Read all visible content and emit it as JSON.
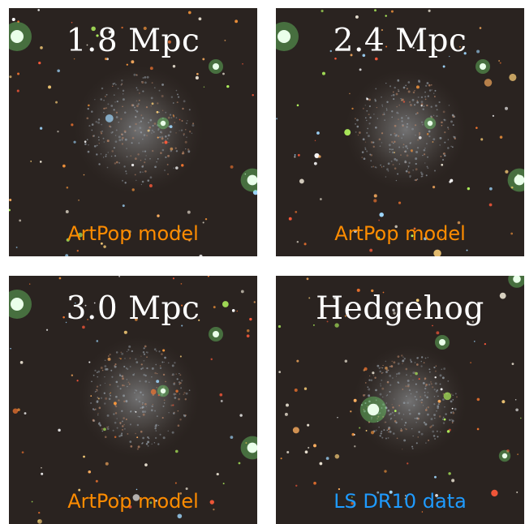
{
  "panels": [
    {
      "title": "1.8 Mpc",
      "label": "ArtPop model"
    },
    {
      "title": "2.4 Mpc",
      "label": "ArtPop model"
    },
    {
      "title": "3.0 Mpc",
      "label": "ArtPop model"
    },
    {
      "title": "Hedgehog",
      "label": "LS DR10 data"
    }
  ],
  "colors": {
    "model_label": "#ff8c00",
    "data_label": "#1f9bff",
    "sky_background": "#2a2320"
  }
}
